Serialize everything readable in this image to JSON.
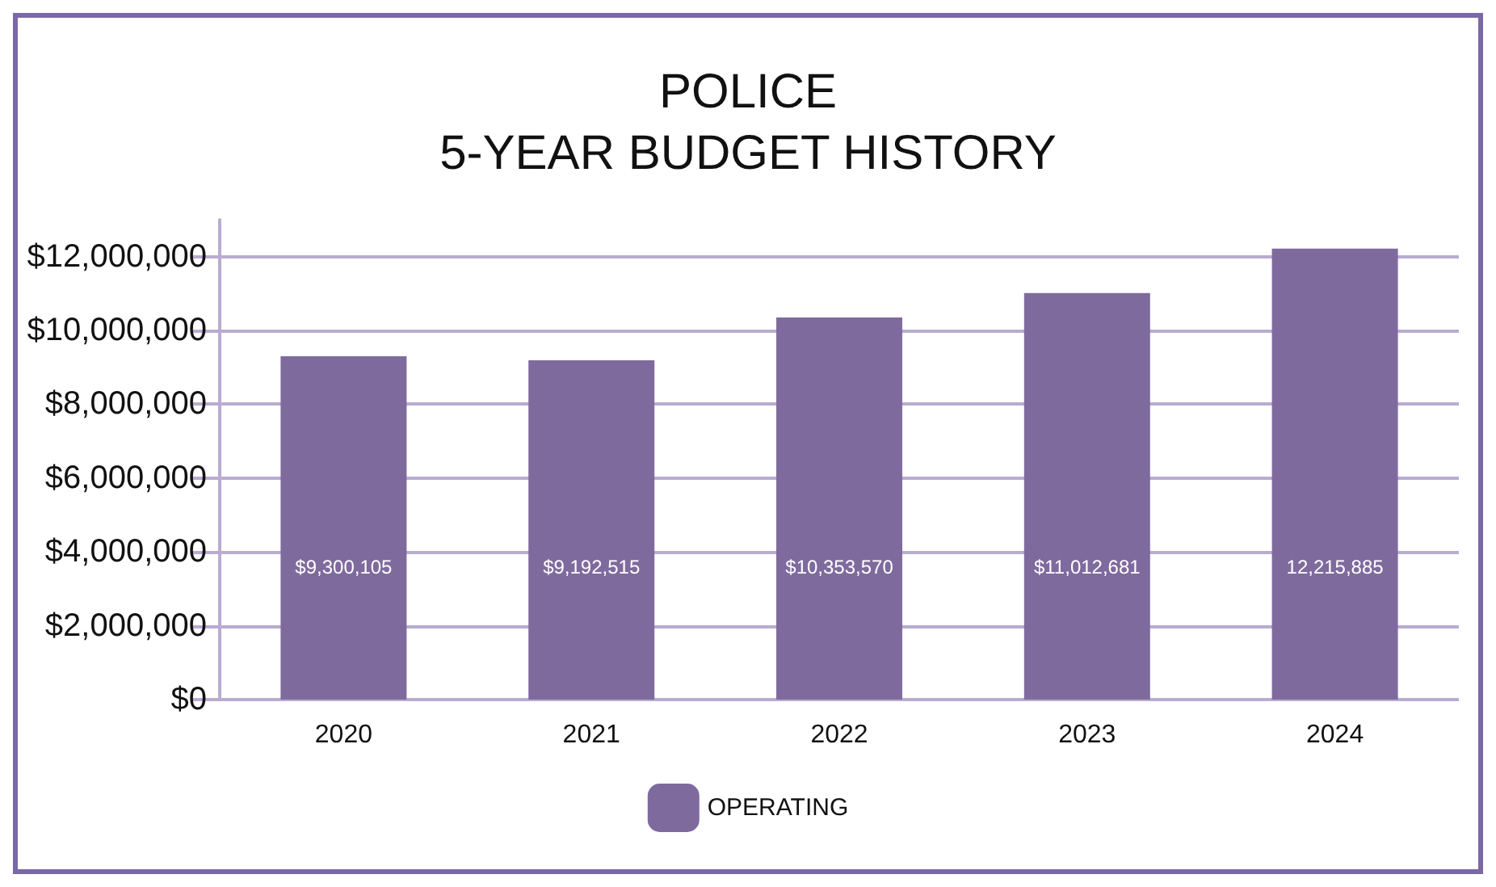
{
  "chart_data": {
    "type": "bar",
    "title": "POLICE\n5-YEAR BUDGET HISTORY",
    "categories": [
      "2020",
      "2021",
      "2022",
      "2023",
      "2024"
    ],
    "series": [
      {
        "name": "OPERATING",
        "color": "#7f6a9e",
        "values": [
          9300105,
          9192515,
          10353570,
          11012681,
          12215885
        ],
        "value_labels": [
          "$9,300,105",
          "$9,192,515",
          "$10,353,570",
          "$11,012,681",
          "12,215,885"
        ]
      }
    ],
    "ylim": [
      0,
      13000000
    ],
    "yticks": [
      {
        "value": 0,
        "label": "$0"
      },
      {
        "value": 2000000,
        "label": "$2,000,000"
      },
      {
        "value": 4000000,
        "label": "$4,000,000"
      },
      {
        "value": 6000000,
        "label": "$6,000,000"
      },
      {
        "value": 8000000,
        "label": "$8,000,000"
      },
      {
        "value": 10000000,
        "label": "$10,000,000"
      },
      {
        "value": 12000000,
        "label": "$12,000,000"
      }
    ],
    "grid": "y",
    "legend": "bottom"
  }
}
